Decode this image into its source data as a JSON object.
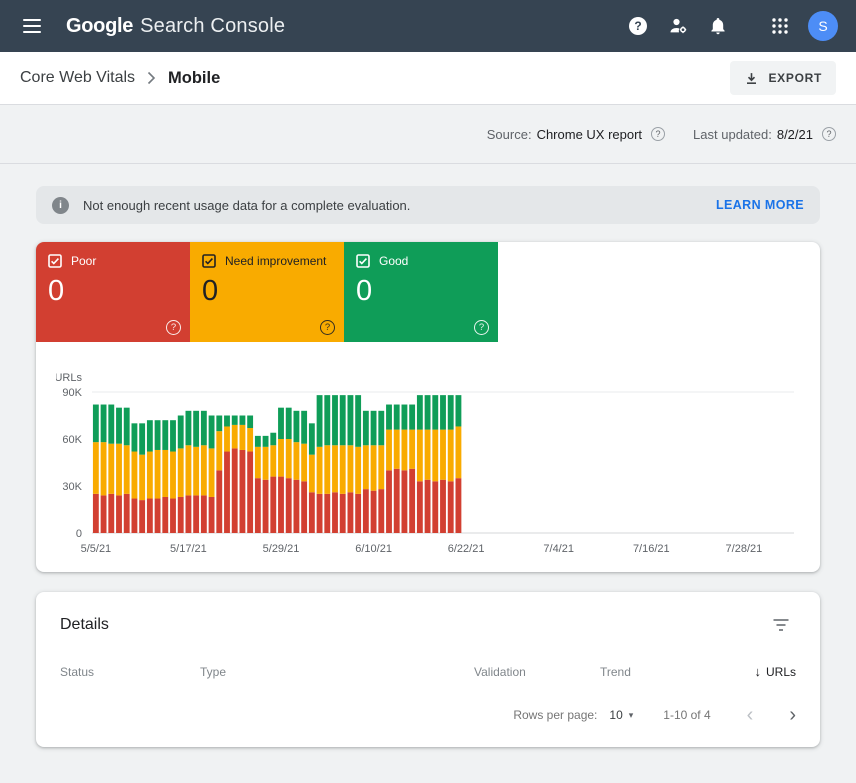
{
  "colors": {
    "appbar": "#364452",
    "link": "#1a73e8",
    "avatar": "#4d8df6",
    "poor": "#d23f31",
    "need_improvement": "#f9ab00",
    "good": "#0f9d58"
  },
  "header": {
    "logo_main": "Google",
    "logo_suffix": "Search Console",
    "avatar_initial": "S"
  },
  "breadcrumb": {
    "section": "Core Web Vitals",
    "page": "Mobile",
    "export_label": "EXPORT"
  },
  "meta": {
    "source_label": "Source:",
    "source_value": "Chrome UX report",
    "updated_label": "Last updated:",
    "updated_value": "8/2/21"
  },
  "banner": {
    "message": "Not enough recent usage data for a complete evaluation.",
    "action": "LEARN MORE"
  },
  "tiles": [
    {
      "label": "Poor",
      "value": "0",
      "color": "#d23f31",
      "text_color": "#ffffff"
    },
    {
      "label": "Need improvement",
      "value": "0",
      "color": "#f9ab00",
      "text_color": "#202124"
    },
    {
      "label": "Good",
      "value": "0",
      "color": "#0f9d58",
      "text_color": "#ffffff"
    }
  ],
  "chart_data": {
    "type": "bar",
    "stacked": true,
    "title": "",
    "xlabel": "",
    "ylabel": "URLs",
    "ylim": [
      0,
      95000
    ],
    "grid": "top-line-and-baseline",
    "y_ticks": [
      {
        "value": 0,
        "label": "0"
      },
      {
        "value": 30000,
        "label": "30K"
      },
      {
        "value": 60000,
        "label": "60K"
      },
      {
        "value": 90000,
        "label": "90K"
      }
    ],
    "x_ticks": [
      {
        "day": 0,
        "label": "5/5/21"
      },
      {
        "day": 12,
        "label": "5/17/21"
      },
      {
        "day": 24,
        "label": "5/29/21"
      },
      {
        "day": 36,
        "label": "6/10/21"
      },
      {
        "day": 48,
        "label": "6/22/21"
      },
      {
        "day": 60,
        "label": "7/4/21"
      },
      {
        "day": 72,
        "label": "7/16/21"
      },
      {
        "day": 84,
        "label": "7/28/21"
      }
    ],
    "categories": [
      "5/5/21",
      "5/6/21",
      "5/7/21",
      "5/8/21",
      "5/9/21",
      "5/10/21",
      "5/11/21",
      "5/12/21",
      "5/13/21",
      "5/14/21",
      "5/15/21",
      "5/16/21",
      "5/17/21",
      "5/18/21",
      "5/19/21",
      "5/20/21",
      "5/21/21",
      "5/22/21",
      "5/23/21",
      "5/24/21",
      "5/25/21",
      "5/26/21",
      "5/27/21",
      "5/28/21",
      "5/29/21",
      "5/30/21",
      "5/31/21",
      "6/1/21",
      "6/2/21",
      "6/3/21",
      "6/4/21",
      "6/5/21",
      "6/6/21",
      "6/7/21",
      "6/8/21",
      "6/9/21",
      "6/10/21",
      "6/11/21",
      "6/12/21",
      "6/13/21",
      "6/14/21",
      "6/15/21",
      "6/16/21",
      "6/17/21",
      "6/18/21",
      "6/19/21",
      "6/20/21",
      "6/21/21"
    ],
    "series": [
      {
        "name": "Poor",
        "color": "#d23f31",
        "values": [
          25000,
          24000,
          25000,
          24000,
          25000,
          22000,
          21000,
          22000,
          22000,
          23000,
          22000,
          23000,
          24000,
          24000,
          24000,
          23000,
          40000,
          52000,
          54000,
          53000,
          52000,
          35000,
          34000,
          36000,
          36000,
          35000,
          34000,
          33000,
          26000,
          25000,
          25000,
          26000,
          25000,
          26000,
          25000,
          28000,
          27000,
          28000,
          40000,
          41000,
          40000,
          41000,
          33000,
          34000,
          33000,
          34000,
          33000,
          35000
        ]
      },
      {
        "name": "Need improvement",
        "color": "#f9ab00",
        "values": [
          33000,
          34000,
          32000,
          33000,
          31000,
          30000,
          29000,
          30000,
          31000,
          30000,
          30000,
          31000,
          32000,
          31000,
          32000,
          31000,
          25000,
          16000,
          15000,
          16000,
          15000,
          20000,
          21000,
          20000,
          24000,
          25000,
          24000,
          24000,
          24000,
          30000,
          31000,
          30000,
          31000,
          30000,
          30000,
          28000,
          29000,
          28000,
          26000,
          25000,
          26000,
          25000,
          33000,
          32000,
          33000,
          32000,
          33000,
          33000
        ]
      },
      {
        "name": "Good",
        "color": "#0f9d58",
        "values": [
          24000,
          24000,
          25000,
          23000,
          24000,
          18000,
          20000,
          20000,
          19000,
          19000,
          20000,
          21000,
          22000,
          23000,
          22000,
          21000,
          10000,
          7000,
          6000,
          6000,
          8000,
          7000,
          7000,
          8000,
          20000,
          20000,
          20000,
          21000,
          20000,
          33000,
          32000,
          32000,
          32000,
          32000,
          33000,
          22000,
          22000,
          22000,
          16000,
          16000,
          16000,
          16000,
          22000,
          22000,
          22000,
          22000,
          22000,
          20000
        ]
      }
    ]
  },
  "details": {
    "title": "Details",
    "columns": [
      "Status",
      "Type",
      "Validation",
      "Trend",
      "URLs"
    ],
    "sort": {
      "column": "URLs",
      "direction": "desc"
    },
    "pagination": {
      "rows_per_page_label": "Rows per page:",
      "rows_per_page": "10",
      "range": "1-10 of 4"
    }
  }
}
